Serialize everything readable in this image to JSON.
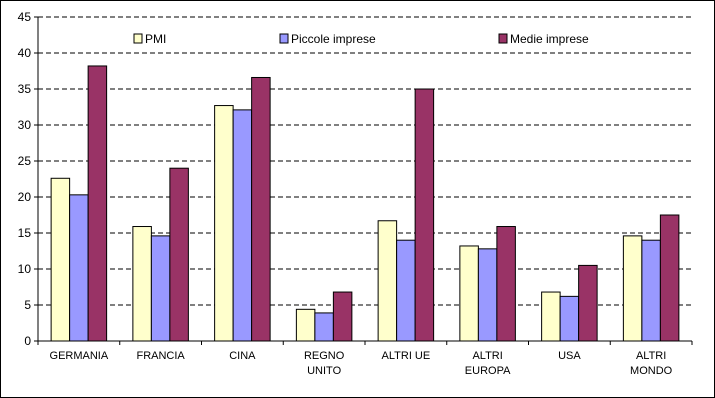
{
  "chart_data": {
    "type": "bar",
    "categories": [
      [
        "GERMANIA"
      ],
      [
        "FRANCIA"
      ],
      [
        "CINA"
      ],
      [
        "REGNO",
        "UNITO"
      ],
      [
        "ALTRI UE"
      ],
      [
        "ALTRI",
        "EUROPA"
      ],
      [
        "USA"
      ],
      [
        "ALTRI",
        "MONDO"
      ]
    ],
    "series": [
      {
        "name": "PMI",
        "color": "#ffffcc",
        "values": [
          22.6,
          15.9,
          32.7,
          4.4,
          16.7,
          13.2,
          6.8,
          14.6
        ]
      },
      {
        "name": "Piccole imprese",
        "color": "#9999ff",
        "values": [
          20.3,
          14.6,
          32.1,
          3.9,
          14.0,
          12.8,
          6.2,
          14.0
        ]
      },
      {
        "name": "Medie imprese",
        "color": "#993366",
        "values": [
          38.2,
          24.0,
          36.6,
          6.8,
          35.0,
          15.9,
          10.5,
          17.5
        ]
      }
    ],
    "ylim": [
      0,
      45
    ],
    "yticks": [
      0,
      5,
      10,
      15,
      20,
      25,
      30,
      35,
      40,
      45
    ],
    "grid": true,
    "legend": "top"
  }
}
